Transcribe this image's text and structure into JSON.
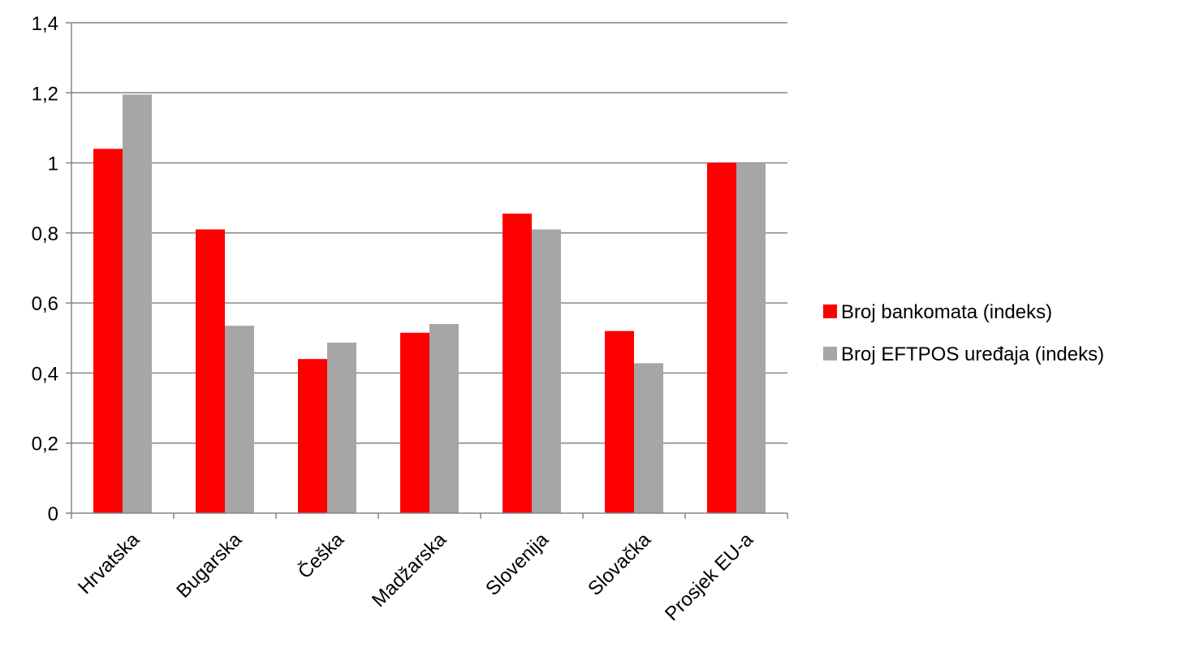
{
  "chart_data": {
    "type": "bar",
    "categories": [
      "Hrvatska",
      "Bugarska",
      "Češka",
      "Madžarska",
      "Slovenija",
      "Slovačka",
      "Prosjek EU-a"
    ],
    "series": [
      {
        "name": "Broj bankomata (indeks)",
        "color": "#ff0000",
        "values": [
          1.04,
          0.81,
          0.44,
          0.515,
          0.855,
          0.52,
          1.0
        ]
      },
      {
        "name": "Broj EFTPOS uređaja (indeks)",
        "color": "#a6a6a6",
        "values": [
          1.195,
          0.535,
          0.487,
          0.54,
          0.81,
          0.428,
          1.0
        ]
      }
    ],
    "ylim": [
      0,
      1.4
    ],
    "yticks": [
      "0",
      "0,2",
      "0,4",
      "0,6",
      "0,8",
      "1",
      "1,2",
      "1,4"
    ],
    "title": "",
    "xlabel": "",
    "ylabel": "",
    "grid": true,
    "legend": "right"
  }
}
